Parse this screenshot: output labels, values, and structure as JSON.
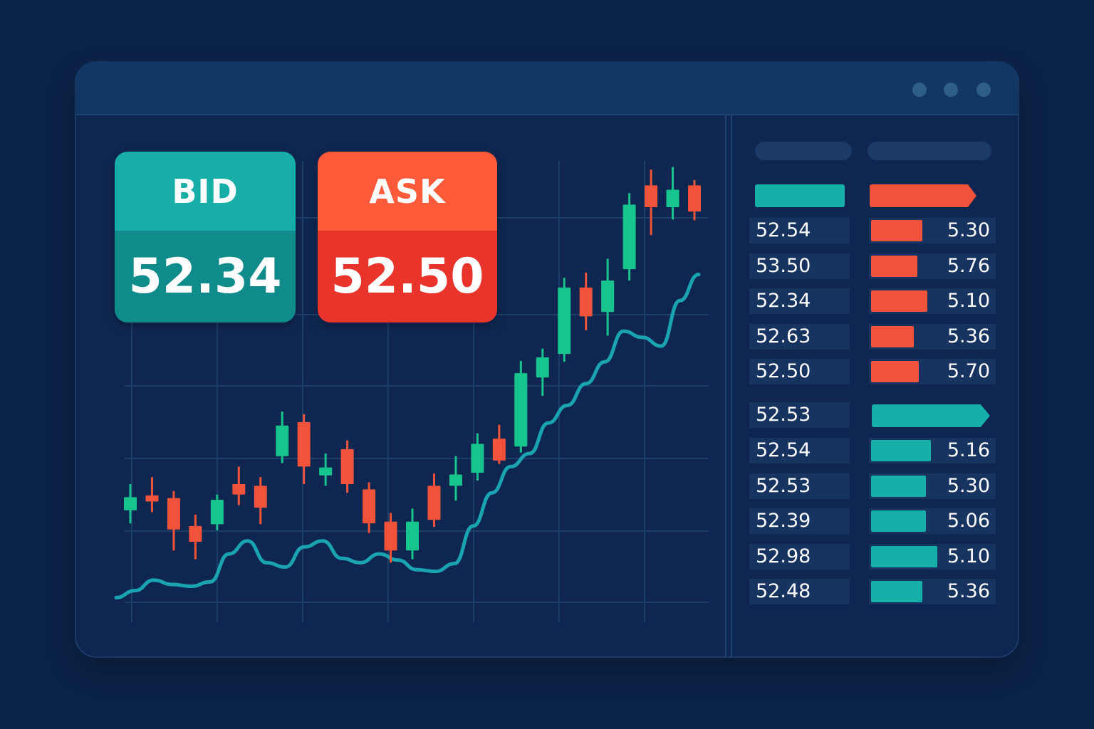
{
  "quotes": {
    "bid_label": "BID",
    "bid_value": "52.34",
    "ask_label": "ASK",
    "ask_value": "52.50"
  },
  "colors": {
    "background": "#0c2348",
    "panel": "#0f2750",
    "bid_teal": "#17aea8",
    "ask_red": "#ff5a3a",
    "up_candle": "#18c48e",
    "down_candle": "#f0523a",
    "trend_line": "#1aa3b0"
  },
  "order_book": {
    "ask_rows": [
      {
        "price": "52.54",
        "size": "5.30",
        "depth": 0.42
      },
      {
        "price": "53.50",
        "size": "5.76",
        "depth": 0.38
      },
      {
        "price": "52.34",
        "size": "5.10",
        "depth": 0.46
      },
      {
        "price": "52.63",
        "size": "5.36",
        "depth": 0.35
      },
      {
        "price": "52.50",
        "size": "5.70",
        "depth": 0.39
      }
    ],
    "bid_header_price": "52.53",
    "bid_rows": [
      {
        "price": "52.54",
        "size": "5.16",
        "depth": 0.49
      },
      {
        "price": "52.53",
        "size": "5.30",
        "depth": 0.45
      },
      {
        "price": "52.39",
        "size": "5.06",
        "depth": 0.45
      },
      {
        "price": "52.98",
        "size": "5.10",
        "depth": 0.54
      },
      {
        "price": "52.48",
        "size": "5.36",
        "depth": 0.42
      }
    ]
  },
  "chart_data": {
    "type": "candlestick",
    "candles": [
      {
        "o": 30,
        "c": 45,
        "h": 60,
        "l": 15
      },
      {
        "o": 47,
        "c": 40,
        "h": 68,
        "l": 28
      },
      {
        "o": 44,
        "c": 8,
        "h": 52,
        "l": -16
      },
      {
        "o": 12,
        "c": -6,
        "h": 25,
        "l": -26
      },
      {
        "o": 14,
        "c": 42,
        "h": 48,
        "l": 7
      },
      {
        "o": 60,
        "c": 48,
        "h": 80,
        "l": 36
      },
      {
        "o": 58,
        "c": 33,
        "h": 68,
        "l": 14
      },
      {
        "o": 92,
        "c": 127,
        "h": 143,
        "l": 84
      },
      {
        "o": 131,
        "c": 80,
        "h": 140,
        "l": 60
      },
      {
        "o": 70,
        "c": 79,
        "h": 95,
        "l": 58
      },
      {
        "o": 100,
        "c": 60,
        "h": 110,
        "l": 50
      },
      {
        "o": 54,
        "c": 15,
        "h": 62,
        "l": 4
      },
      {
        "o": 17,
        "c": -16,
        "h": 27,
        "l": -30
      },
      {
        "o": -16,
        "c": 17,
        "h": 32,
        "l": -26
      },
      {
        "o": 58,
        "c": 19,
        "h": 72,
        "l": 11
      },
      {
        "o": 58,
        "c": 71,
        "h": 92,
        "l": 41
      },
      {
        "o": 73,
        "c": 106,
        "h": 118,
        "l": 64
      },
      {
        "o": 112,
        "c": 87,
        "h": 128,
        "l": 83
      },
      {
        "o": 103,
        "c": 187,
        "h": 201,
        "l": 96
      },
      {
        "o": 182,
        "c": 205,
        "h": 215,
        "l": 161
      },
      {
        "o": 209,
        "c": 285,
        "h": 296,
        "l": 200
      },
      {
        "o": 285,
        "c": 252,
        "h": 302,
        "l": 236
      },
      {
        "o": 257,
        "c": 293,
        "h": 318,
        "l": 230
      },
      {
        "o": 306,
        "c": 380,
        "h": 393,
        "l": 293
      },
      {
        "o": 402,
        "c": 377,
        "h": 420,
        "l": 345
      },
      {
        "o": 377,
        "c": 397,
        "h": 423,
        "l": 363
      },
      {
        "o": 402,
        "c": 372,
        "h": 408,
        "l": 362
      }
    ],
    "trend": [
      -70,
      -62,
      -50,
      -55,
      -57,
      -52,
      -20,
      -5,
      -30,
      -35,
      -12,
      -5,
      -25,
      -30,
      -20,
      -27,
      -38,
      -40,
      -31,
      12,
      50,
      80,
      95,
      130,
      150,
      175,
      200,
      235,
      228,
      218,
      270,
      300
    ],
    "ylim": [
      -90,
      430
    ],
    "grid": true
  }
}
